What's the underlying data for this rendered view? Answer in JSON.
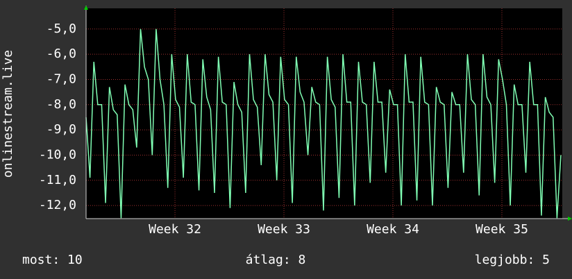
{
  "chart_data": {
    "type": "line",
    "ylabel": "onlinestream.live",
    "x": [
      0,
      0.25,
      0.5,
      0.75,
      1,
      1.25,
      1.5,
      1.75,
      2,
      2.25,
      2.5,
      2.75,
      3,
      3.25,
      3.5,
      3.75,
      4,
      4.25,
      4.5,
      4.75,
      5,
      5.25,
      5.5,
      5.75,
      6,
      6.25,
      6.5,
      6.75,
      7,
      7.25,
      7.5,
      7.75,
      8,
      8.25,
      8.5,
      8.75,
      9,
      9.25,
      9.5,
      9.75,
      10,
      10.25,
      10.5,
      10.75,
      11,
      11.25,
      11.5,
      11.75,
      12,
      12.25,
      12.5,
      12.75,
      13,
      13.25,
      13.5,
      13.75,
      14,
      14.25,
      14.5,
      14.75,
      15,
      15.25,
      15.5,
      15.75,
      16,
      16.25,
      16.5,
      16.75,
      17,
      17.25,
      17.5,
      17.75,
      18,
      18.25,
      18.5,
      18.75,
      19,
      19.25,
      19.5,
      19.75,
      20,
      20.25,
      20.5,
      20.75,
      21,
      21.25,
      21.5,
      21.75,
      22,
      22.25,
      22.5,
      22.75,
      23,
      23.25,
      23.5,
      23.75,
      24,
      24.25,
      24.5,
      24.75,
      25,
      25.25,
      25.5,
      25.75,
      26,
      26.25,
      26.5,
      26.75,
      27,
      27.25,
      27.5,
      27.75,
      28,
      28.25,
      28.5,
      28.75,
      29,
      29.25,
      29.5,
      29.75,
      30,
      30.25,
      30.5
    ],
    "series": [
      {
        "color": "#80ffb4",
        "values": [
          -8.5,
          -10.9,
          -6.3,
          -8.0,
          -8.0,
          -11.9,
          -7.3,
          -8.2,
          -8.4,
          -12.5,
          -7.2,
          -8.0,
          -8.2,
          -9.7,
          -5.0,
          -6.5,
          -7.0,
          -10.0,
          -5.0,
          -7.0,
          -8.0,
          -11.3,
          -6.0,
          -7.8,
          -8.1,
          -10.9,
          -6.0,
          -7.9,
          -8.0,
          -11.4,
          -6.2,
          -7.7,
          -8.2,
          -11.5,
          -6.1,
          -7.9,
          -8.0,
          -12.1,
          -7.1,
          -8.0,
          -8.3,
          -11.5,
          -6.0,
          -7.8,
          -8.1,
          -10.4,
          -6.0,
          -7.6,
          -7.9,
          -11.0,
          -6.1,
          -7.8,
          -8.0,
          -11.9,
          -6.1,
          -7.5,
          -7.9,
          -10.0,
          -7.3,
          -7.9,
          -8.0,
          -12.2,
          -6.1,
          -7.8,
          -8.1,
          -11.7,
          -6.0,
          -7.9,
          -7.9,
          -12.0,
          -6.3,
          -7.9,
          -8.0,
          -11.1,
          -6.3,
          -7.9,
          -7.9,
          -10.7,
          -7.4,
          -8.0,
          -8.0,
          -12.0,
          -6.0,
          -7.9,
          -7.9,
          -11.8,
          -6.1,
          -7.9,
          -8.0,
          -12.0,
          -7.3,
          -7.9,
          -8.0,
          -11.3,
          -7.5,
          -8.0,
          -8.0,
          -10.7,
          -6.0,
          -7.8,
          -8.0,
          -11.6,
          -6.0,
          -7.7,
          -8.0,
          -11.1,
          -6.2,
          -7.0,
          -8.0,
          -12.0,
          -7.2,
          -8.0,
          -8.0,
          -10.7,
          -6.3,
          -8.0,
          -8.0,
          -12.4,
          -7.7,
          -8.3,
          -8.5,
          -12.5,
          -10.0
        ]
      }
    ],
    "xlim": [
      0,
      30.59
    ],
    "ylim": [
      -12.52,
      -4.18
    ],
    "xticks": [
      {
        "value": 5.71,
        "label": "Week 32"
      },
      {
        "value": 12.71,
        "label": "Week 33"
      },
      {
        "value": 19.71,
        "label": "Week 34"
      },
      {
        "value": 26.71,
        "label": "Week 35"
      }
    ],
    "yticks": [
      {
        "value": -12,
        "label": "-12,0"
      },
      {
        "value": -11,
        "label": "-11,0"
      },
      {
        "value": -10,
        "label": "-10,0"
      },
      {
        "value": -9,
        "label": "-9,0"
      },
      {
        "value": -8,
        "label": "-8,0"
      },
      {
        "value": -7,
        "label": "-7,0"
      },
      {
        "value": -6,
        "label": "-6,0"
      },
      {
        "value": -5,
        "label": "-5,0"
      }
    ],
    "grid": true
  },
  "footer": {
    "items": [
      "most: 10",
      "átlag: 8",
      "legjobb: 5"
    ]
  }
}
